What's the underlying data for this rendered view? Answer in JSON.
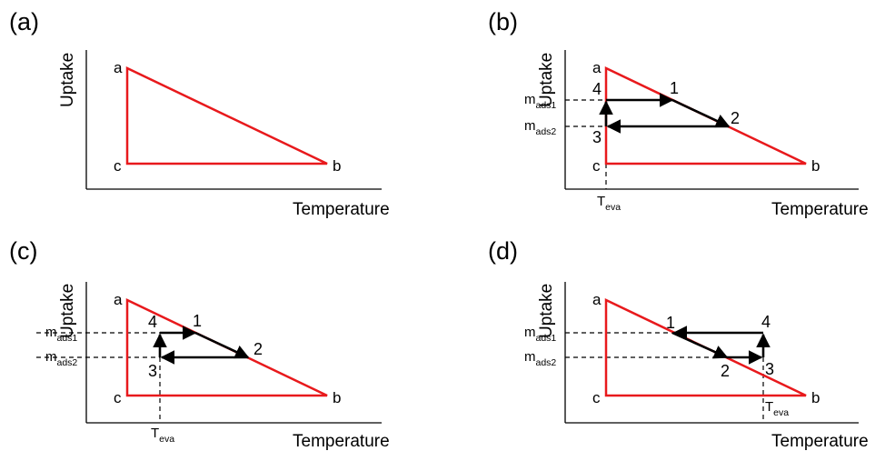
{
  "panels": [
    {
      "label": "(a)",
      "y_axis": "Uptake",
      "x_axis": "Temperature",
      "vertices": {
        "a": "a",
        "b": "b",
        "c": "c"
      },
      "steps": [],
      "m_labels": [],
      "t_label": null
    },
    {
      "label": "(b)",
      "y_axis": "Uptake",
      "x_axis": "Temperature",
      "vertices": {
        "a": "a",
        "b": "b",
        "c": "c"
      },
      "steps": [
        "1",
        "2",
        "3",
        "4"
      ],
      "m_labels": [
        {
          "main": "m",
          "sub": "ads1"
        },
        {
          "main": "m",
          "sub": "ads2"
        }
      ],
      "t_label": {
        "main": "T",
        "sub": "eva"
      }
    },
    {
      "label": "(c)",
      "y_axis": "Uptake",
      "x_axis": "Temperature",
      "vertices": {
        "a": "a",
        "b": "b",
        "c": "c"
      },
      "steps": [
        "1",
        "2",
        "3",
        "4"
      ],
      "m_labels": [
        {
          "main": "m",
          "sub": "ads1"
        },
        {
          "main": "m",
          "sub": "ads2"
        }
      ],
      "t_label": {
        "main": "T",
        "sub": "eva"
      }
    },
    {
      "label": "(d)",
      "y_axis": "Uptake",
      "x_axis": "Temperature",
      "vertices": {
        "a": "a",
        "b": "b",
        "c": "c"
      },
      "steps": [
        "1",
        "2",
        "3",
        "4"
      ],
      "m_labels": [
        {
          "main": "m",
          "sub": "ads1"
        },
        {
          "main": "m",
          "sub": "ads2"
        }
      ],
      "t_label": {
        "main": "T",
        "sub": "eva"
      }
    }
  ],
  "colors": {
    "triangle": "#e8191c",
    "cycle": "#000000",
    "axis": "#000000"
  }
}
